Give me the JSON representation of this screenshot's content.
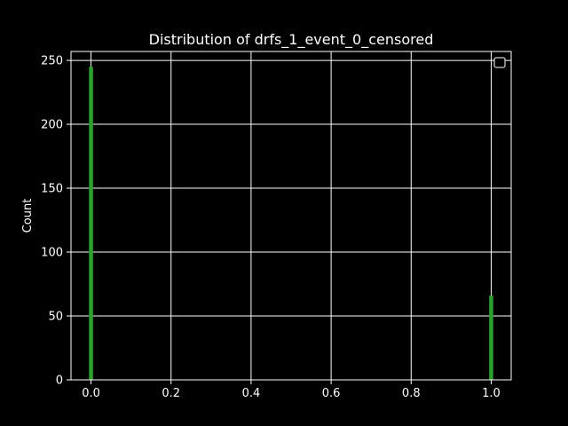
{
  "chart_data": {
    "type": "bar",
    "title": "Distribution of drfs_1_event_0_censored",
    "xlabel": "",
    "ylabel": "Count",
    "x": [
      0.0,
      1.0
    ],
    "values": [
      245,
      66
    ],
    "bin_width": 0.01,
    "xlim": [
      -0.05,
      1.05
    ],
    "ylim": [
      0,
      257
    ],
    "xticks": [
      0.0,
      0.2,
      0.4,
      0.6,
      0.8,
      1.0
    ],
    "xtick_labels": [
      "0.0",
      "0.2",
      "0.4",
      "0.6",
      "0.8",
      "1.0"
    ],
    "yticks": [
      0,
      50,
      100,
      150,
      200,
      250
    ],
    "ytick_labels": [
      "0",
      "50",
      "100",
      "150",
      "200",
      "250"
    ],
    "grid": true,
    "legend": "top-right",
    "colors": {
      "background": "#000000",
      "bar": "#2ca02c",
      "axis": "#ffffff",
      "grid": "#ffffff",
      "text": "#ffffff"
    }
  }
}
